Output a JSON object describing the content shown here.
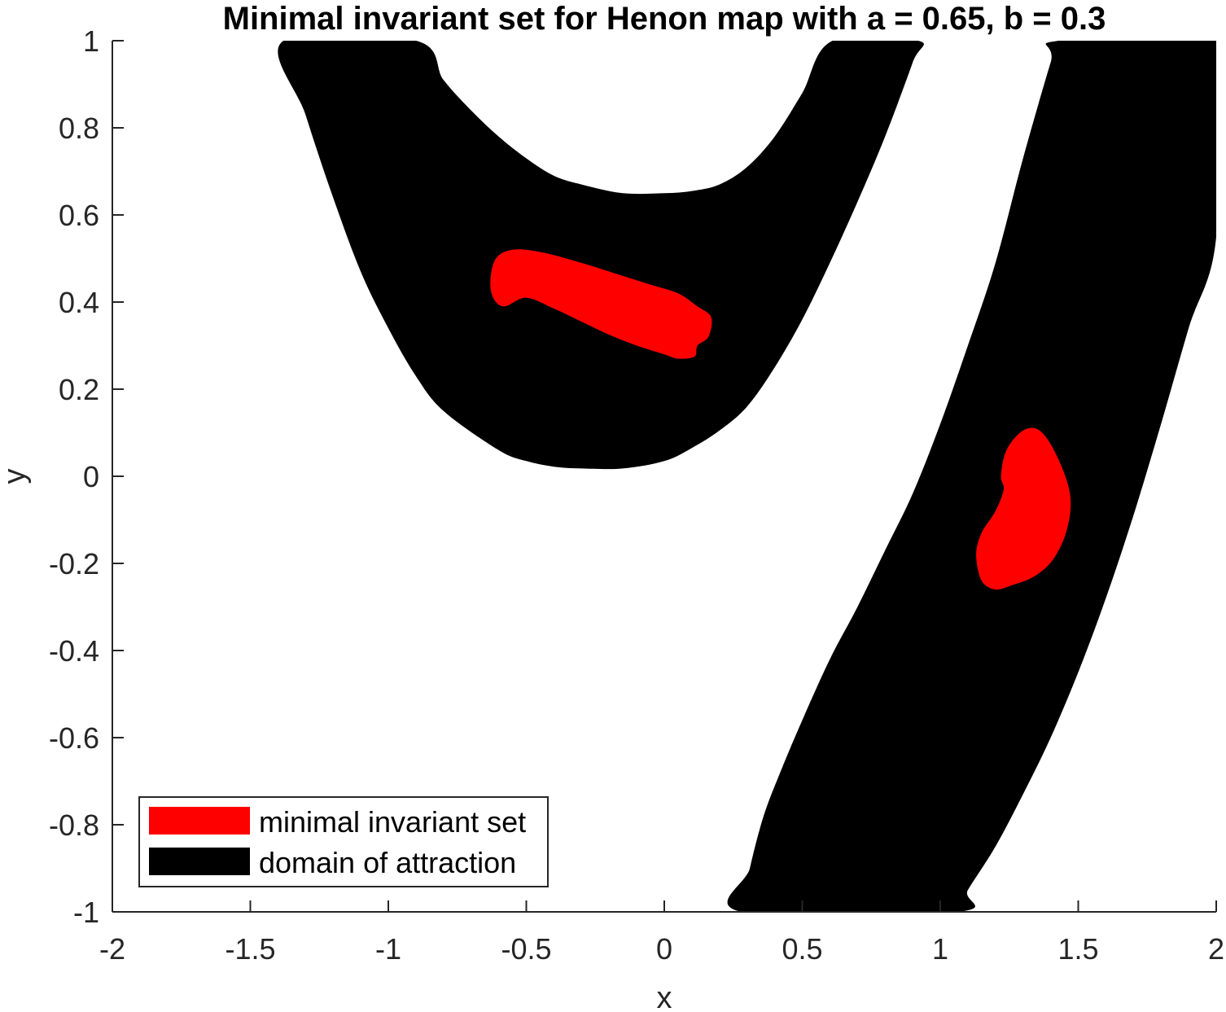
{
  "chart_data": {
    "type": "area",
    "title": "Minimal invariant set for Henon map with a = 0.65, b = 0.3",
    "xlabel": "x",
    "ylabel": "y",
    "xlim": [
      -2,
      2
    ],
    "ylim": [
      -1,
      1
    ],
    "xticks": [
      -2,
      -1.5,
      -1,
      -0.5,
      0,
      0.5,
      1,
      1.5,
      2
    ],
    "xtick_labels": [
      "-2",
      "-1.5",
      "-1",
      "-0.5",
      "0",
      "0.5",
      "1",
      "1.5",
      "2"
    ],
    "yticks": [
      -1,
      -0.8,
      -0.6,
      -0.4,
      -0.2,
      0,
      0.2,
      0.4,
      0.6,
      0.8,
      1
    ],
    "ytick_labels": [
      "-1",
      "-0.8",
      "-0.6",
      "-0.4",
      "-0.2",
      "0",
      "0.2",
      "0.4",
      "0.6",
      "0.8",
      "1"
    ],
    "grid": false,
    "legend_position": "bottom-left",
    "legend": [
      {
        "label": "minimal invariant set",
        "color": "#ff0000"
      },
      {
        "label": "domain of attraction",
        "color": "#000000"
      }
    ],
    "series": [
      {
        "name": "domain of attraction",
        "color": "#000000",
        "regions": [
          [
            [
              -1.38,
              1
            ],
            [
              -1.3,
              0.83
            ],
            [
              -1.2,
              0.64
            ],
            [
              -1.1,
              0.47
            ],
            [
              -1.0,
              0.34
            ],
            [
              -0.9,
              0.23
            ],
            [
              -0.8,
              0.15
            ],
            [
              -0.6,
              0.06
            ],
            [
              -0.5,
              0.035
            ],
            [
              -0.4,
              0.022
            ],
            [
              -0.3,
              0.018
            ],
            [
              -0.15,
              0.018
            ],
            [
              0,
              0.035
            ],
            [
              0.1,
              0.065
            ],
            [
              0.2,
              0.105
            ],
            [
              0.3,
              0.16
            ],
            [
              0.4,
              0.25
            ],
            [
              0.5,
              0.36
            ],
            [
              0.6,
              0.49
            ],
            [
              0.7,
              0.63
            ],
            [
              0.8,
              0.78
            ],
            [
              0.9,
              0.95
            ],
            [
              0.92,
              1
            ],
            [
              0.61,
              1
            ],
            [
              0.5,
              0.88
            ],
            [
              0.4,
              0.78
            ],
            [
              0.3,
              0.71
            ],
            [
              0.2,
              0.67
            ],
            [
              0.1,
              0.655
            ],
            [
              0,
              0.65
            ],
            [
              -0.15,
              0.65
            ],
            [
              -0.3,
              0.67
            ],
            [
              -0.4,
              0.69
            ],
            [
              -0.5,
              0.73
            ],
            [
              -0.6,
              0.78
            ],
            [
              -0.7,
              0.84
            ],
            [
              -0.8,
              0.91
            ],
            [
              -0.9,
              1
            ]
          ],
          [
            [
              0.28,
              -1
            ],
            [
              0.31,
              -0.9
            ],
            [
              0.36,
              -0.78
            ],
            [
              0.42,
              -0.68
            ],
            [
              0.5,
              -0.56
            ],
            [
              0.6,
              -0.42
            ],
            [
              0.7,
              -0.3
            ],
            [
              0.8,
              -0.17
            ],
            [
              0.9,
              -0.04
            ],
            [
              1.0,
              0.12
            ],
            [
              1.1,
              0.3
            ],
            [
              1.2,
              0.49
            ],
            [
              1.3,
              0.73
            ],
            [
              1.4,
              0.95
            ],
            [
              1.43,
              1
            ],
            [
              2,
              1
            ],
            [
              2,
              0.55
            ],
            [
              1.9,
              0.34
            ],
            [
              1.8,
              0.12
            ],
            [
              1.7,
              -0.09
            ],
            [
              1.6,
              -0.28
            ],
            [
              1.5,
              -0.45
            ],
            [
              1.4,
              -0.6
            ],
            [
              1.3,
              -0.73
            ],
            [
              1.2,
              -0.85
            ],
            [
              1.1,
              -0.95
            ],
            [
              1.06,
              -1
            ]
          ]
        ]
      },
      {
        "name": "minimal invariant set",
        "color": "#ff0000",
        "regions": [
          [
            [
              -0.63,
              0.45
            ],
            [
              -0.61,
              0.5
            ],
            [
              -0.55,
              0.52
            ],
            [
              -0.45,
              0.515
            ],
            [
              -0.3,
              0.49
            ],
            [
              -0.15,
              0.46
            ],
            [
              -0.05,
              0.44
            ],
            [
              0.05,
              0.42
            ],
            [
              0.12,
              0.39
            ],
            [
              0.17,
              0.365
            ],
            [
              0.16,
              0.32
            ],
            [
              0.12,
              0.3
            ],
            [
              0.11,
              0.275
            ],
            [
              0.05,
              0.27
            ],
            [
              0.0,
              0.28
            ],
            [
              -0.1,
              0.3
            ],
            [
              -0.2,
              0.325
            ],
            [
              -0.3,
              0.355
            ],
            [
              -0.4,
              0.385
            ],
            [
              -0.5,
              0.41
            ],
            [
              -0.58,
              0.39
            ],
            [
              -0.62,
              0.41
            ]
          ],
          [
            [
              1.22,
              0.0
            ],
            [
              1.24,
              0.06
            ],
            [
              1.3,
              0.105
            ],
            [
              1.36,
              0.105
            ],
            [
              1.42,
              0.05
            ],
            [
              1.47,
              -0.04
            ],
            [
              1.46,
              -0.12
            ],
            [
              1.41,
              -0.19
            ],
            [
              1.34,
              -0.23
            ],
            [
              1.26,
              -0.25
            ],
            [
              1.2,
              -0.26
            ],
            [
              1.15,
              -0.24
            ],
            [
              1.13,
              -0.18
            ],
            [
              1.15,
              -0.13
            ],
            [
              1.2,
              -0.08
            ],
            [
              1.23,
              -0.03
            ]
          ]
        ]
      }
    ]
  }
}
